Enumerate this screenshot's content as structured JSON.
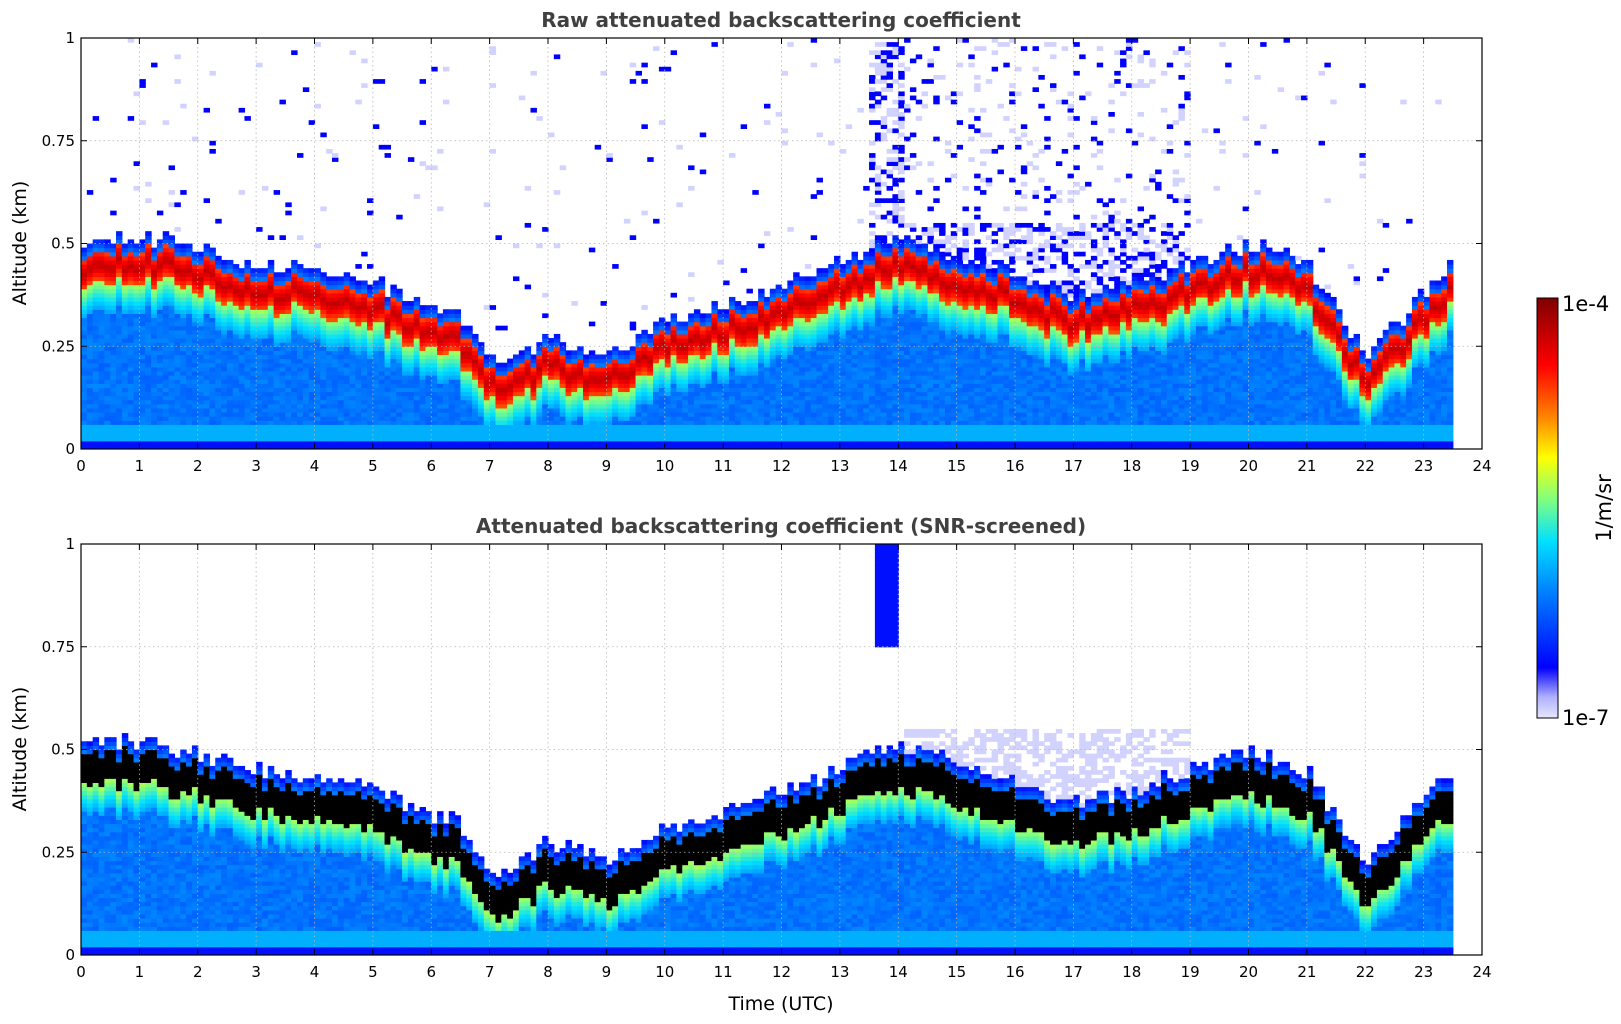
{
  "chart_data": [
    {
      "type": "heatmap",
      "id": "raw",
      "title": "Raw attenuated backscattering coefficient",
      "xlabel": "",
      "ylabel": "Altitude (km)",
      "xlim": [
        0,
        24
      ],
      "ylim": [
        0,
        1
      ],
      "xticks": [
        "0",
        "1",
        "2",
        "3",
        "4",
        "5",
        "6",
        "7",
        "8",
        "9",
        "10",
        "11",
        "12",
        "13",
        "14",
        "15",
        "16",
        "17",
        "18",
        "19",
        "20",
        "21",
        "22",
        "23",
        "24"
      ],
      "yticks": [
        "0",
        "0.25",
        "0.5",
        "0.75",
        "1"
      ],
      "grid": true,
      "data_end_hour": 23.5,
      "layer_top_km": [
        [
          0,
          0.46
        ],
        [
          1,
          0.47
        ],
        [
          2,
          0.44
        ],
        [
          3,
          0.4
        ],
        [
          4,
          0.39
        ],
        [
          5,
          0.36
        ],
        [
          5.8,
          0.3
        ],
        [
          6.5,
          0.27
        ],
        [
          7,
          0.17
        ],
        [
          7.2,
          0.15
        ],
        [
          8,
          0.22
        ],
        [
          9,
          0.18
        ],
        [
          9.5,
          0.22
        ],
        [
          10,
          0.26
        ],
        [
          11,
          0.3
        ],
        [
          12,
          0.35
        ],
        [
          13,
          0.4
        ],
        [
          13.6,
          0.45
        ],
        [
          14,
          0.46
        ],
        [
          15,
          0.42
        ],
        [
          16,
          0.38
        ],
        [
          17,
          0.32
        ],
        [
          18,
          0.35
        ],
        [
          19,
          0.4
        ],
        [
          20,
          0.45
        ],
        [
          21,
          0.4
        ],
        [
          22,
          0.18
        ],
        [
          22.5,
          0.25
        ],
        [
          23,
          0.33
        ],
        [
          23.5,
          0.4
        ]
      ]
    },
    {
      "type": "heatmap",
      "id": "screened",
      "title": "Attenuated backscattering coefficient (SNR-screened)",
      "xlabel": "Time (UTC)",
      "ylabel": "Altitude (km)",
      "xlim": [
        0,
        24
      ],
      "ylim": [
        0,
        1
      ],
      "xticks": [
        "0",
        "1",
        "2",
        "3",
        "4",
        "5",
        "6",
        "7",
        "8",
        "9",
        "10",
        "11",
        "12",
        "13",
        "14",
        "15",
        "16",
        "17",
        "18",
        "19",
        "20",
        "21",
        "22",
        "23",
        "24"
      ],
      "yticks": [
        "0",
        "0.25",
        "0.5",
        "0.75",
        "1"
      ],
      "grid": true,
      "data_end_hour": 23.5
    }
  ],
  "colorbar": {
    "label": "1/m/sr",
    "max_label": "1e-4",
    "min_label": "1e-7",
    "scale": "log",
    "colors": [
      "#e6e6ff",
      "#0000ff",
      "#0080ff",
      "#00e0ff",
      "#80ff80",
      "#ffff00",
      "#ff8000",
      "#ff0000",
      "#800000"
    ]
  }
}
